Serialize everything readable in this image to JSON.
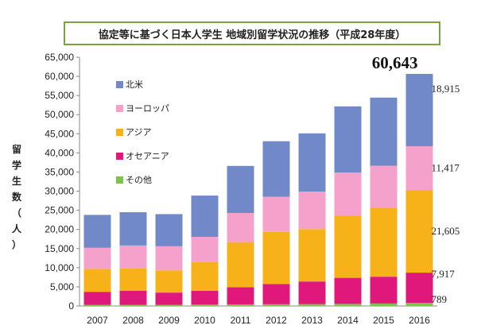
{
  "chart_data": {
    "type": "bar",
    "stacked": true,
    "title": "協定等に基づく日本人学生 地域別留学状況の推移（平成28年度）",
    "ylabel_chars": [
      "留",
      "学",
      "生",
      "数",
      "（",
      "人",
      "）"
    ],
    "categories": [
      "2007",
      "2008",
      "2009",
      "2010",
      "2011",
      "2012",
      "2013",
      "2014",
      "2015",
      "2016"
    ],
    "series": [
      {
        "name": "その他",
        "color": "#7cc450",
        "values": [
          300,
          300,
          300,
          350,
          400,
          450,
          500,
          550,
          650,
          789
        ]
      },
      {
        "name": "オセアニア",
        "color": "#e0187c",
        "values": [
          3400,
          3700,
          3200,
          3600,
          4500,
          5300,
          5900,
          6800,
          7000,
          7917
        ]
      },
      {
        "name": "アジア",
        "color": "#f7b21a",
        "values": [
          6000,
          5800,
          5800,
          7500,
          11800,
          13600,
          13700,
          16300,
          18000,
          21605
        ]
      },
      {
        "name": "ヨーロッパ",
        "color": "#f4a2cc",
        "values": [
          5500,
          6000,
          6300,
          6600,
          7600,
          9200,
          9800,
          11200,
          11000,
          11417
        ]
      },
      {
        "name": "北米",
        "color": "#7289c9",
        "values": [
          8600,
          8700,
          8400,
          10800,
          12300,
          14500,
          15200,
          17300,
          17800,
          18915
        ]
      }
    ],
    "legend_order": [
      "北米",
      "ヨーロッパ",
      "アジア",
      "オセアニア",
      "その他"
    ],
    "ylim": [
      0,
      65000
    ],
    "yticks": [
      "0",
      "5,000",
      "10,000",
      "15,000",
      "20,000",
      "25,000",
      "30,000",
      "35,000",
      "40,000",
      "45,000",
      "50,000",
      "55,000",
      "60,000",
      "65,000"
    ],
    "annotations": {
      "total_2016": "60,643",
      "north_america_2016": "18,915",
      "europe_2016": "11,417",
      "asia_2016": "21,605",
      "oceania_2016": "7,917",
      "other_2016": "789"
    },
    "legend_position": "top-left"
  }
}
